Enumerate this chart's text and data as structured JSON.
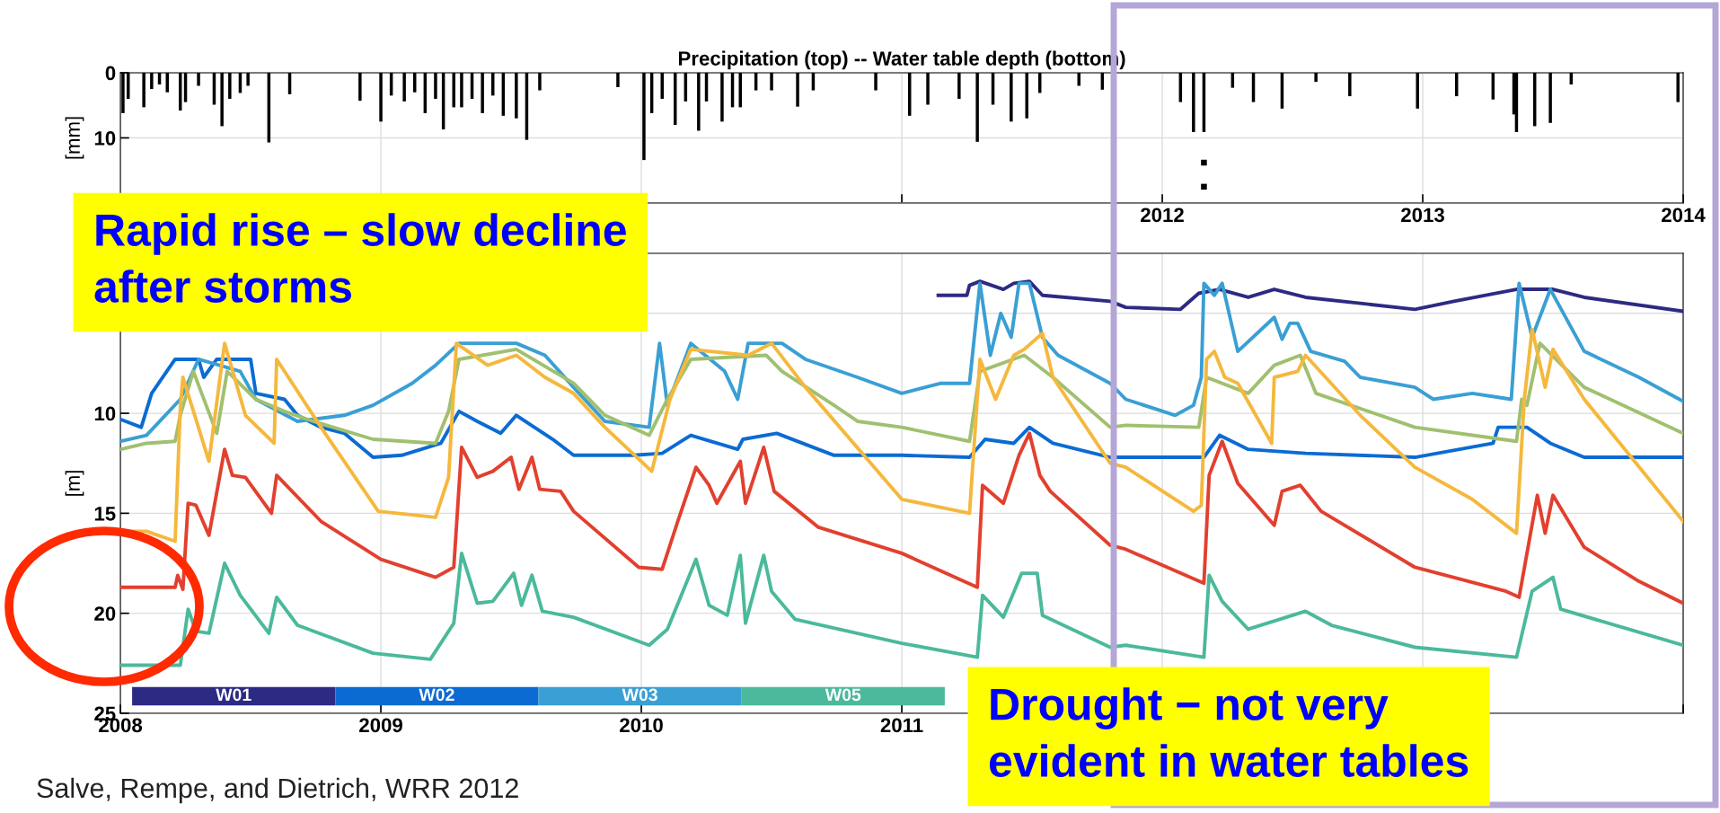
{
  "chart_data": [
    {
      "type": "bar",
      "title": "Precipitation (top) -- Water table depth (bottom)",
      "ylabel": "[mm]",
      "xlim": [
        2008,
        2014
      ],
      "xticks": [
        {
          "value": 2008,
          "label": null
        },
        {
          "value": 2009,
          "label": null
        },
        {
          "value": 2010,
          "label": null
        },
        {
          "value": 2011,
          "label": null
        },
        2012,
        2013,
        2014
      ],
      "ylim": [
        20,
        0
      ],
      "yticks": [
        0,
        10,
        {
          "value": 20,
          "label": null
        }
      ],
      "grid": true,
      "marker": "square",
      "series": [
        {
          "type": "bar",
          "color": "#000000",
          "x": [
            2008.01,
            2008.03,
            2008.09,
            2008.12,
            2008.15,
            2008.18,
            2008.23,
            2008.25,
            2008.3,
            2008.36,
            2008.39,
            2008.42,
            2008.46,
            2008.49,
            2008.57,
            2008.65,
            2008.92,
            2009.0,
            2009.04,
            2009.09,
            2009.13,
            2009.17,
            2009.21,
            2009.24,
            2009.28,
            2009.31,
            2009.35,
            2009.39,
            2009.43,
            2009.47,
            2009.52,
            2009.56,
            2009.61,
            2009.91,
            2010.01,
            2010.04,
            2010.08,
            2010.13,
            2010.17,
            2010.22,
            2010.25,
            2010.31,
            2010.35,
            2010.38,
            2010.44,
            2010.5,
            2010.6,
            2010.66,
            2010.9,
            2011.03,
            2011.1,
            2011.22,
            2011.29,
            2011.35,
            2011.42,
            2011.48,
            2011.53,
            2011.68,
            2011.77,
            2012.07,
            2012.12,
            2012.16,
            2012.27,
            2012.35,
            2012.46,
            2012.59,
            2012.72,
            2012.98,
            2013.13,
            2013.27,
            2013.35,
            2013.36,
            2013.43,
            2013.49,
            2013.57,
            2013.98
          ],
          "values": [
            6.2,
            4.0,
            5.3,
            2.5,
            1.8,
            3.0,
            5.8,
            4.5,
            2.0,
            4.9,
            8.2,
            4.0,
            3.1,
            2.0,
            10.7,
            3.3,
            4.3,
            7.5,
            3.5,
            4.4,
            3.0,
            6.2,
            4.0,
            8.7,
            5.3,
            5.3,
            4.0,
            6.2,
            3.5,
            6.6,
            7.0,
            10.3,
            2.7,
            2.2,
            13.4,
            6.2,
            4.0,
            8.0,
            4.4,
            8.9,
            4.4,
            7.5,
            5.3,
            5.3,
            2.7,
            2.7,
            5.2,
            2.7,
            2.7,
            6.6,
            4.9,
            4.0,
            10.6,
            4.9,
            7.5,
            7.0,
            3.1,
            2.0,
            2.6,
            4.5,
            9.1,
            9.1,
            2.3,
            4.5,
            5.5,
            1.4,
            3.6,
            5.5,
            3.6,
            4.1,
            6.4,
            9.1,
            8.2,
            7.7,
            1.8,
            4.5
          ]
        },
        {
          "type": "scatter",
          "color": "#000000",
          "x": [
            2012.16,
            2012.16
          ],
          "values": [
            13.8,
            17.5
          ]
        }
      ],
      "annotations": [
        "Rapid rise – slow decline\nafter storms"
      ]
    },
    {
      "type": "line",
      "ylabel": "[m]",
      "xlim": [
        2008,
        2014
      ],
      "xticks": [
        2008,
        2009,
        2010,
        2011,
        {
          "value": 2012,
          "label": null
        },
        {
          "value": 2013,
          "label": null
        },
        {
          "value": 2014,
          "label": null
        }
      ],
      "ylim": [
        25,
        2
      ],
      "yticks": [
        {
          "value": 5,
          "label": null
        },
        10,
        15,
        20,
        25
      ],
      "grid": true,
      "legend": "bottom",
      "line_style": "solid",
      "series": [
        {
          "name": "W01",
          "color": "#2d2a84",
          "x": [
            2011.14,
            2011.25,
            2011.26,
            2011.3,
            2011.39,
            2011.43,
            2011.49,
            2011.54,
            2011.8,
            2011.86,
            2012.07,
            2012.14,
            2012.22,
            2012.33,
            2012.43,
            2012.55,
            2012.97,
            2013.12,
            2013.36,
            2013.5,
            2013.62,
            2014.0
          ],
          "values": [
            4.1,
            4.1,
            3.6,
            3.4,
            3.8,
            3.5,
            3.4,
            4.1,
            4.4,
            4.7,
            4.8,
            4.0,
            3.8,
            4.2,
            3.8,
            4.2,
            4.8,
            4.4,
            3.8,
            3.8,
            4.2,
            4.9
          ]
        },
        {
          "name": "W02",
          "color": "#0b6bd3",
          "x": [
            2008.0,
            2008.08,
            2008.12,
            2008.21,
            2008.3,
            2008.32,
            2008.37,
            2008.5,
            2008.52,
            2008.63,
            2008.68,
            2008.77,
            2008.86,
            2008.97,
            2009.08,
            2009.23,
            2009.3,
            2009.37,
            2009.46,
            2009.52,
            2009.66,
            2009.74,
            2009.97,
            2010.08,
            2010.19,
            2010.37,
            2010.39,
            2010.52,
            2010.74,
            2011.0,
            2011.26,
            2011.32,
            2011.43,
            2011.49,
            2011.58,
            2011.8,
            2011.86,
            2012.16,
            2012.22,
            2012.33,
            2012.55,
            2012.97,
            2013.27,
            2013.29,
            2013.4,
            2013.49,
            2013.62,
            2014.0
          ],
          "values": [
            10.3,
            10.7,
            9.0,
            7.3,
            7.3,
            8.2,
            7.3,
            7.3,
            9.0,
            9.3,
            10.1,
            10.7,
            11.0,
            12.2,
            12.1,
            11.5,
            9.9,
            10.4,
            11.0,
            10.1,
            11.3,
            12.1,
            12.1,
            12.0,
            11.1,
            11.8,
            11.3,
            11.0,
            12.1,
            12.1,
            12.2,
            11.3,
            11.5,
            10.7,
            11.5,
            12.2,
            12.2,
            12.2,
            11.1,
            11.8,
            12.0,
            12.2,
            11.5,
            10.7,
            10.7,
            11.5,
            12.2,
            12.2
          ]
        },
        {
          "name": "W03",
          "color": "#3a9fd4",
          "x": [
            2008.0,
            2008.1,
            2008.23,
            2008.3,
            2008.46,
            2008.52,
            2008.68,
            2008.86,
            2008.97,
            2009.12,
            2009.21,
            2009.3,
            2009.52,
            2009.63,
            2009.74,
            2009.86,
            2010.03,
            2010.07,
            2010.1,
            2010.19,
            2010.32,
            2010.37,
            2010.41,
            2010.54,
            2010.63,
            2010.83,
            2011.0,
            2011.15,
            2011.26,
            2011.3,
            2011.34,
            2011.38,
            2011.42,
            2011.45,
            2011.49,
            2011.54,
            2011.6,
            2011.8,
            2011.86,
            2012.05,
            2012.12,
            2012.15,
            2012.16,
            2012.2,
            2012.23,
            2012.29,
            2012.43,
            2012.46,
            2012.49,
            2012.52,
            2012.57,
            2012.7,
            2012.76,
            2012.97,
            2013.04,
            2013.19,
            2013.34,
            2013.37,
            2013.42,
            2013.49,
            2013.62,
            2013.83,
            2014.0
          ],
          "values": [
            11.4,
            11.1,
            9.3,
            7.3,
            7.9,
            9.3,
            10.4,
            10.1,
            9.6,
            8.5,
            7.6,
            6.5,
            6.5,
            7.1,
            8.7,
            10.4,
            10.7,
            6.5,
            9.6,
            6.5,
            7.9,
            9.3,
            6.5,
            6.5,
            7.3,
            8.2,
            9.0,
            8.5,
            8.5,
            3.5,
            7.1,
            5.0,
            6.2,
            3.5,
            3.5,
            6.2,
            7.1,
            8.5,
            9.3,
            10.1,
            9.6,
            8.2,
            3.5,
            4.1,
            3.5,
            6.9,
            5.2,
            6.3,
            5.5,
            5.5,
            6.9,
            7.4,
            8.2,
            8.7,
            9.3,
            9.0,
            9.3,
            3.5,
            6.2,
            3.8,
            6.9,
            8.2,
            9.4
          ]
        },
        {
          "name": "W05",
          "color": "#4bb99b",
          "x": [
            2008.0,
            2008.23,
            2008.26,
            2008.29,
            2008.34,
            2008.4,
            2008.46,
            2008.57,
            2008.6,
            2008.68,
            2008.97,
            2009.19,
            2009.28,
            2009.31,
            2009.37,
            2009.43,
            2009.51,
            2009.54,
            2009.58,
            2009.62,
            2009.74,
            2010.03,
            2010.1,
            2010.21,
            2010.26,
            2010.33,
            2010.38,
            2010.4,
            2010.47,
            2010.5,
            2010.59,
            2011.0,
            2011.29,
            2011.31,
            2011.39,
            2011.46,
            2011.52,
            2011.54,
            2011.8,
            2011.86,
            2012.16,
            2012.18,
            2012.23,
            2012.33,
            2012.55,
            2012.65,
            2012.97,
            2013.36,
            2013.42,
            2013.5,
            2013.53,
            2014.0
          ],
          "values": [
            22.6,
            22.6,
            19.8,
            20.9,
            21.0,
            17.5,
            19.1,
            21.0,
            19.2,
            20.6,
            22.0,
            22.3,
            20.5,
            17.0,
            19.5,
            19.4,
            18.0,
            19.6,
            18.1,
            19.9,
            20.2,
            21.6,
            20.8,
            17.3,
            19.6,
            20.1,
            17.1,
            20.5,
            17.1,
            18.9,
            20.3,
            21.5,
            22.2,
            19.1,
            20.2,
            18.0,
            18.0,
            20.1,
            21.7,
            21.6,
            22.2,
            18.1,
            19.4,
            20.8,
            19.9,
            20.6,
            21.7,
            22.2,
            18.9,
            18.2,
            19.8,
            21.6
          ]
        },
        {
          "color": "#a0c070",
          "x": [
            2008.0,
            2008.1,
            2008.21,
            2008.23,
            2008.28,
            2008.37,
            2008.41,
            2008.52,
            2008.63,
            2008.74,
            2008.97,
            2009.21,
            2009.26,
            2009.3,
            2009.52,
            2009.74,
            2009.86,
            2010.03,
            2010.1,
            2010.19,
            2010.48,
            2010.54,
            2010.74,
            2010.83,
            2011.0,
            2011.26,
            2011.3,
            2011.47,
            2011.58,
            2011.8,
            2011.86,
            2012.14,
            2012.17,
            2012.33,
            2012.43,
            2012.53,
            2012.59,
            2012.97,
            2013.36,
            2013.38,
            2013.4,
            2013.45,
            2013.62,
            2014.0
          ],
          "values": [
            11.8,
            11.5,
            11.4,
            10.1,
            7.9,
            11.0,
            7.9,
            9.3,
            9.9,
            10.4,
            11.3,
            11.5,
            9.9,
            7.3,
            6.8,
            8.5,
            10.1,
            11.1,
            9.3,
            7.3,
            7.1,
            7.9,
            9.6,
            10.4,
            10.7,
            11.4,
            7.9,
            7.1,
            8.2,
            10.7,
            10.6,
            10.7,
            8.2,
            9.0,
            7.6,
            7.1,
            9.0,
            10.7,
            11.4,
            9.3,
            9.6,
            6.5,
            8.7,
            11.0
          ]
        },
        {
          "color": "#f5b83d",
          "x": [
            2008.0,
            2008.1,
            2008.21,
            2008.23,
            2008.24,
            2008.34,
            2008.4,
            2008.48,
            2008.59,
            2008.6,
            2008.77,
            2008.99,
            2009.21,
            2009.26,
            2009.29,
            2009.41,
            2009.52,
            2009.63,
            2009.74,
            2009.86,
            2010.04,
            2010.11,
            2010.19,
            2010.41,
            2010.5,
            2010.63,
            2011.0,
            2011.26,
            2011.3,
            2011.36,
            2011.43,
            2011.47,
            2011.54,
            2011.58,
            2011.8,
            2011.86,
            2012.12,
            2012.15,
            2012.17,
            2012.2,
            2012.24,
            2012.29,
            2012.42,
            2012.43,
            2012.52,
            2012.55,
            2012.76,
            2012.97,
            2013.19,
            2013.36,
            2013.39,
            2013.42,
            2013.47,
            2013.5,
            2013.62,
            2014.0
          ],
          "values": [
            15.9,
            15.9,
            16.4,
            9.7,
            8.2,
            12.4,
            6.5,
            10.1,
            11.5,
            7.3,
            10.7,
            14.9,
            15.2,
            13.2,
            6.5,
            7.6,
            7.1,
            8.2,
            9.0,
            10.7,
            12.9,
            9.3,
            6.8,
            7.1,
            6.5,
            8.7,
            14.3,
            15.0,
            7.3,
            9.3,
            7.1,
            6.8,
            6.0,
            8.2,
            12.5,
            12.7,
            14.9,
            14.6,
            7.3,
            6.9,
            8.2,
            8.5,
            11.5,
            8.2,
            7.9,
            7.1,
            10.1,
            12.7,
            14.3,
            16.0,
            9.3,
            5.8,
            8.7,
            6.8,
            9.3,
            15.4
          ]
        },
        {
          "color": "#e2402f",
          "x": [
            2008.0,
            2008.21,
            2008.22,
            2008.24,
            2008.26,
            2008.29,
            2008.34,
            2008.4,
            2008.43,
            2008.48,
            2008.58,
            2008.6,
            2008.77,
            2009.0,
            2009.21,
            2009.28,
            2009.31,
            2009.37,
            2009.43,
            2009.5,
            2009.53,
            2009.58,
            2009.61,
            2009.69,
            2009.74,
            2009.99,
            2010.08,
            2010.14,
            2010.21,
            2010.26,
            2010.29,
            2010.38,
            2010.4,
            2010.47,
            2010.51,
            2010.68,
            2011.0,
            2011.29,
            2011.31,
            2011.39,
            2011.45,
            2011.49,
            2011.53,
            2011.57,
            2011.8,
            2011.86,
            2012.16,
            2012.18,
            2012.23,
            2012.29,
            2012.43,
            2012.46,
            2012.53,
            2012.61,
            2012.97,
            2013.32,
            2013.37,
            2013.44,
            2013.47,
            2013.5,
            2013.62,
            2013.83,
            2014.0
          ],
          "values": [
            18.7,
            18.7,
            18.1,
            18.8,
            14.5,
            14.6,
            16.1,
            11.8,
            13.1,
            13.2,
            15.0,
            13.1,
            15.4,
            17.3,
            18.2,
            17.7,
            11.7,
            13.2,
            12.9,
            12.2,
            13.8,
            12.2,
            13.8,
            13.9,
            14.9,
            17.7,
            17.8,
            15.4,
            12.7,
            13.6,
            14.5,
            12.4,
            14.5,
            11.7,
            13.9,
            15.7,
            17.0,
            18.7,
            13.6,
            14.5,
            12.1,
            11.0,
            13.1,
            13.9,
            16.6,
            16.8,
            18.5,
            13.1,
            11.4,
            13.5,
            15.6,
            13.9,
            13.6,
            14.9,
            17.7,
            18.9,
            19.2,
            14.1,
            16.0,
            14.1,
            16.7,
            18.4,
            19.5
          ]
        }
      ],
      "annotations": [
        "Drought − not very\nevident in water tables",
        "Salve, Rempe, and Dietrich, WRR 2012"
      ]
    }
  ]
}
